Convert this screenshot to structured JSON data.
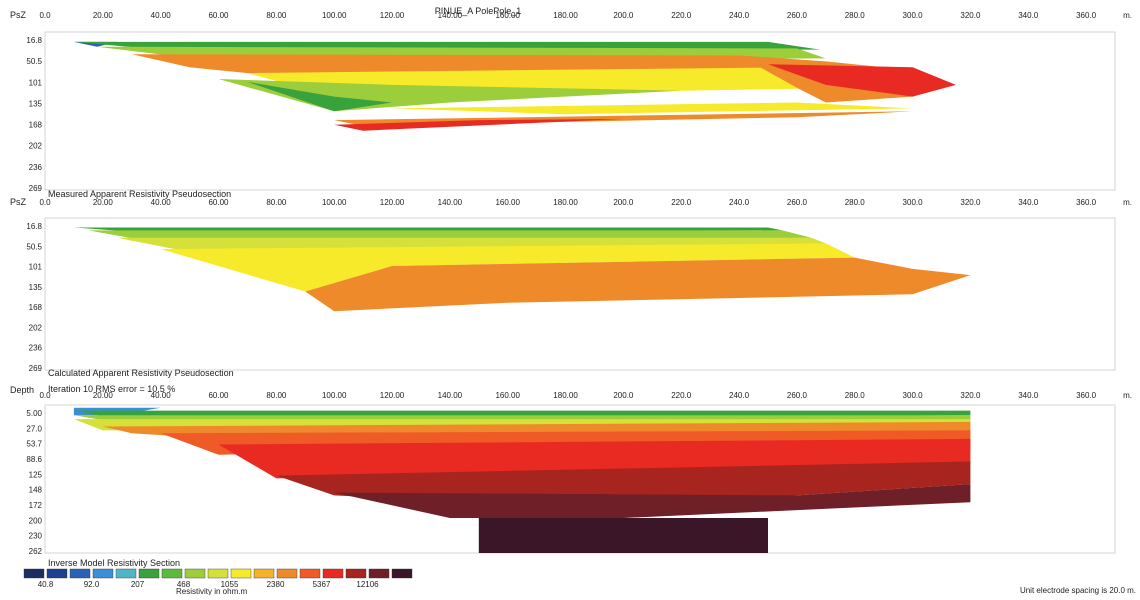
{
  "title": "PINUE_A PolePole_1",
  "x_unit": "m.",
  "x_ticks": [
    "0.0",
    "20.00",
    "40.00",
    "60.00",
    "80.00",
    "100.00",
    "120.00",
    "140.00",
    "160.00",
    "180.00",
    "200.0",
    "220.0",
    "240.0",
    "260.0",
    "280.0",
    "300.0",
    "320.0",
    "340.0",
    "360.0"
  ],
  "legend": {
    "title": "Inverse Model Resistivity Section",
    "values": [
      "40.8",
      "92.0",
      "207",
      "468",
      "1055",
      "2380",
      "5367",
      "12106"
    ],
    "unit": "Resistivity in ohm.m",
    "colors": [
      "#1c2d63",
      "#1f3f8f",
      "#2a62b8",
      "#3b8fd6",
      "#4fb6c8",
      "#38a23c",
      "#5dbb3c",
      "#9ccd3a",
      "#d6e03a",
      "#f6ea2b",
      "#f4b22a",
      "#ee8a2a",
      "#ef5a26",
      "#e82a23",
      "#a8241e",
      "#6e1f27",
      "#3a1628"
    ]
  },
  "footer_note": "Unit electrode spacing is 20.0 m.",
  "chart_data": [
    {
      "type": "heatmap",
      "title": "Measured Apparent Resistivity Pseudosection",
      "axis_label": "PsZ",
      "y_ticks": [
        "16.8",
        "50.5",
        "101",
        "135",
        "168",
        "202",
        "236",
        "269"
      ],
      "xlim": [
        0,
        370
      ],
      "ylim": [
        0,
        269
      ],
      "bands": [
        {
          "color_index": 2,
          "points": [
            [
              10,
              16.8
            ],
            [
              25,
              16.8
            ],
            [
              18,
              25
            ]
          ]
        },
        {
          "color_index": 5,
          "points": [
            [
              10,
              16.8
            ],
            [
              250,
              16.8
            ],
            [
              268,
              30
            ],
            [
              40,
              30
            ]
          ]
        },
        {
          "color_index": 7,
          "points": [
            [
              18,
              25
            ],
            [
              260,
              28
            ],
            [
              270,
              45
            ],
            [
              60,
              50
            ]
          ]
        },
        {
          "color_index": 11,
          "points": [
            [
              30,
              38
            ],
            [
              240,
              40
            ],
            [
              300,
              75
            ],
            [
              90,
              80
            ],
            [
              50,
              60
            ]
          ]
        },
        {
          "color_index": 9,
          "points": [
            [
              70,
              70
            ],
            [
              260,
              60
            ],
            [
              280,
              95
            ],
            [
              100,
              110
            ]
          ]
        },
        {
          "color_index": 7,
          "points": [
            [
              60,
              80
            ],
            [
              120,
              90
            ],
            [
              220,
              100
            ],
            [
              140,
              120
            ],
            [
              100,
              135
            ]
          ]
        },
        {
          "color_index": 5,
          "points": [
            [
              70,
              85
            ],
            [
              100,
              110
            ],
            [
              120,
              120
            ],
            [
              100,
              135
            ]
          ]
        },
        {
          "color_index": 9,
          "points": [
            [
              120,
              130
            ],
            [
              260,
              120
            ],
            [
              300,
              130
            ],
            [
              180,
              140
            ]
          ]
        },
        {
          "color_index": 11,
          "points": [
            [
              240,
              40
            ],
            [
              270,
              50
            ],
            [
              290,
              60
            ],
            [
              310,
              80
            ],
            [
              300,
              110
            ],
            [
              270,
              120
            ],
            [
              260,
              95
            ]
          ]
        },
        {
          "color_index": 13,
          "points": [
            [
              250,
              55
            ],
            [
              300,
              60
            ],
            [
              315,
              90
            ],
            [
              300,
              110
            ],
            [
              270,
              90
            ]
          ]
        },
        {
          "color_index": 11,
          "points": [
            [
              100,
              150
            ],
            [
              300,
              135
            ],
            [
              260,
              145
            ],
            [
              110,
              160
            ]
          ]
        },
        {
          "color_index": 13,
          "points": [
            [
              100,
              158
            ],
            [
              150,
              150
            ],
            [
              200,
              148
            ],
            [
              110,
              168
            ]
          ]
        }
      ]
    },
    {
      "type": "heatmap",
      "title": "Calculated Apparent Resistivity Pseudosection",
      "axis_label": "PsZ",
      "y_ticks": [
        "16.8",
        "50.5",
        "101",
        "135",
        "168",
        "202",
        "236",
        "269"
      ],
      "xlim": [
        0,
        370
      ],
      "ylim": [
        0,
        269
      ],
      "bands": [
        {
          "color_index": 5,
          "points": [
            [
              10,
              16.8
            ],
            [
              250,
              16.8
            ],
            [
              255,
              22
            ],
            [
              30,
              24
            ]
          ]
        },
        {
          "color_index": 7,
          "points": [
            [
              15,
              22
            ],
            [
              255,
              22
            ],
            [
              265,
              35
            ],
            [
              40,
              45
            ]
          ]
        },
        {
          "color_index": 8,
          "points": [
            [
              25,
              35
            ],
            [
              265,
              35
            ],
            [
              270,
              45
            ],
            [
              60,
              70
            ]
          ]
        },
        {
          "color_index": 9,
          "points": [
            [
              40,
              55
            ],
            [
              270,
              45
            ],
            [
              280,
              70
            ],
            [
              120,
              85
            ],
            [
              90,
              130
            ]
          ]
        },
        {
          "color_index": 11,
          "points": [
            [
              90,
              130
            ],
            [
              120,
              85
            ],
            [
              280,
              70
            ],
            [
              300,
              90
            ],
            [
              320,
              101
            ],
            [
              300,
              135
            ],
            [
              160,
              150
            ],
            [
              100,
              165
            ]
          ]
        }
      ]
    },
    {
      "type": "heatmap",
      "title": "Inverse Model Resistivity Section",
      "axis_label": "Depth",
      "subtitle": "Iteration 10 RMS error = 10.5 %",
      "y_ticks": [
        "5.00",
        "27.0",
        "53.7",
        "88.6",
        "125",
        "148",
        "172",
        "200",
        "230",
        "262"
      ],
      "xlim": [
        0,
        370
      ],
      "ylim": [
        0,
        262
      ],
      "bands": [
        {
          "color_index": 3,
          "points": [
            [
              10,
              5
            ],
            [
              40,
              5
            ],
            [
              25,
              18
            ],
            [
              10,
              18
            ]
          ]
        },
        {
          "color_index": 5,
          "points": [
            [
              10,
              10
            ],
            [
              320,
              10
            ],
            [
              320,
              18
            ],
            [
              25,
              25
            ]
          ]
        },
        {
          "color_index": 7,
          "points": [
            [
              10,
              18
            ],
            [
              320,
              18
            ],
            [
              320,
              27
            ],
            [
              30,
              35
            ]
          ]
        },
        {
          "color_index": 8,
          "points": [
            [
              10,
              25
            ],
            [
              320,
              25
            ],
            [
              320,
              35
            ],
            [
              20,
              45
            ]
          ]
        },
        {
          "color_index": 11,
          "points": [
            [
              20,
              38
            ],
            [
              320,
              30
            ],
            [
              320,
              55
            ],
            [
              200,
              50
            ],
            [
              60,
              60
            ],
            [
              30,
              50
            ]
          ]
        },
        {
          "color_index": 12,
          "points": [
            [
              40,
              50
            ],
            [
              320,
              45
            ],
            [
              320,
              80
            ],
            [
              200,
              75
            ],
            [
              60,
              88
            ]
          ]
        },
        {
          "color_index": 13,
          "points": [
            [
              60,
              70
            ],
            [
              320,
              60
            ],
            [
              320,
              105
            ],
            [
              200,
              120
            ],
            [
              80,
              130
            ]
          ]
        },
        {
          "color_index": 14,
          "points": [
            [
              80,
              125
            ],
            [
              320,
              100
            ],
            [
              320,
              140
            ],
            [
              260,
              160
            ],
            [
              180,
              180
            ],
            [
              100,
              160
            ]
          ]
        },
        {
          "color_index": 15,
          "points": [
            [
              100,
              155
            ],
            [
              260,
              160
            ],
            [
              320,
              140
            ],
            [
              320,
              172
            ],
            [
              200,
              200
            ],
            [
              140,
              200
            ]
          ]
        },
        {
          "color_index": 16,
          "points": [
            [
              150,
              200
            ],
            [
              250,
              200
            ],
            [
              250,
              262
            ],
            [
              150,
              262
            ]
          ]
        }
      ]
    }
  ]
}
